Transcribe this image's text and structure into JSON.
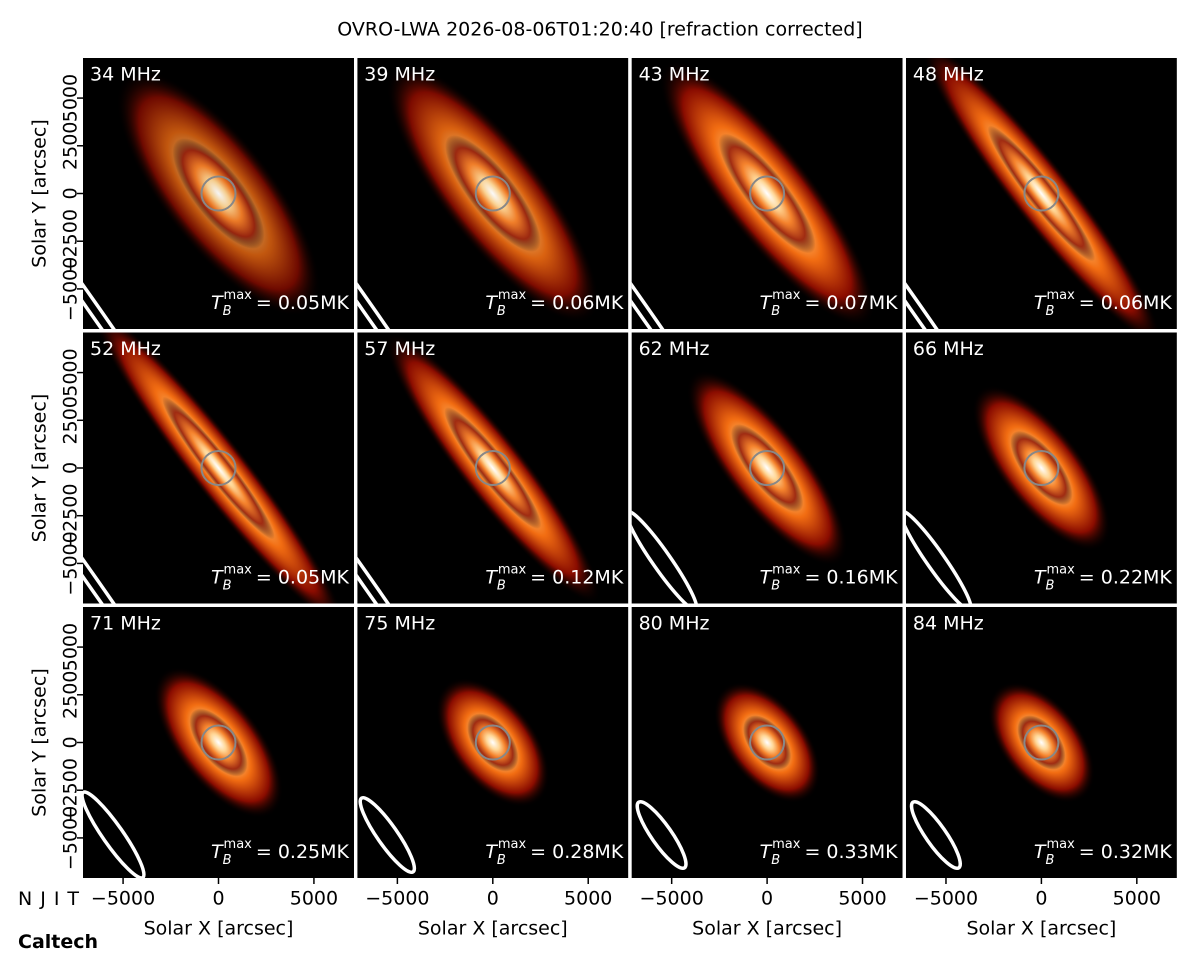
{
  "chart_data": {
    "type": "image-grid",
    "title": "OVRO-LWA 2026-08-06T01:20:40 [refraction corrected]",
    "xlabel": "Solar X [arcsec]",
    "ylabel": "Solar Y [arcsec]",
    "xlim": [
      -7100,
      7100
    ],
    "ylim": [
      -7100,
      7100
    ],
    "xticks": [
      {
        "value": -5000,
        "label": "−5000"
      },
      0,
      5000
    ],
    "yticks": [
      {
        "value": -5000,
        "label": "−5000"
      },
      {
        "value": -2500,
        "label": "−2500"
      },
      0,
      2500,
      5000
    ],
    "tb_symbol": {
      "base": "T",
      "sub": "B",
      "sup": "max"
    },
    "panels": [
      {
        "frequency": {
          "value": 34,
          "label": "34 MHz"
        },
        "tb_max": {
          "value": 0.05,
          "label": "= 0.05MK"
        }
      },
      {
        "frequency": {
          "value": 39,
          "label": "39 MHz"
        },
        "tb_max": {
          "value": 0.06,
          "label": "= 0.06MK"
        }
      },
      {
        "frequency": {
          "value": 43,
          "label": "43 MHz"
        },
        "tb_max": {
          "value": 0.07,
          "label": "= 0.07MK"
        }
      },
      {
        "frequency": {
          "value": 48,
          "label": "48 MHz"
        },
        "tb_max": {
          "value": 0.06,
          "label": "= 0.06MK"
        }
      },
      {
        "frequency": {
          "value": 52,
          "label": "52 MHz"
        },
        "tb_max": {
          "value": 0.05,
          "label": "= 0.05MK"
        }
      },
      {
        "frequency": {
          "value": 57,
          "label": "57 MHz"
        },
        "tb_max": {
          "value": 0.12,
          "label": "= 0.12MK"
        }
      },
      {
        "frequency": {
          "value": 62,
          "label": "62 MHz"
        },
        "tb_max": {
          "value": 0.16,
          "label": "= 0.16MK"
        }
      },
      {
        "frequency": {
          "value": 66,
          "label": "66 MHz"
        },
        "tb_max": {
          "value": 0.22,
          "label": "= 0.22MK"
        }
      },
      {
        "frequency": {
          "value": 71,
          "label": "71 MHz"
        },
        "tb_max": {
          "value": 0.25,
          "label": "= 0.25MK"
        }
      },
      {
        "frequency": {
          "value": 75,
          "label": "75 MHz"
        },
        "tb_max": {
          "value": 0.28,
          "label": "= 0.28MK"
        }
      },
      {
        "frequency": {
          "value": 80,
          "label": "80 MHz"
        },
        "tb_max": {
          "value": 0.33,
          "label": "= 0.33MK"
        }
      },
      {
        "frequency": {
          "value": 84,
          "label": "84 MHz"
        },
        "tb_max": {
          "value": 0.32,
          "label": "= 0.32MK"
        }
      }
    ],
    "logos": [
      "NJIT",
      "Caltech"
    ]
  }
}
